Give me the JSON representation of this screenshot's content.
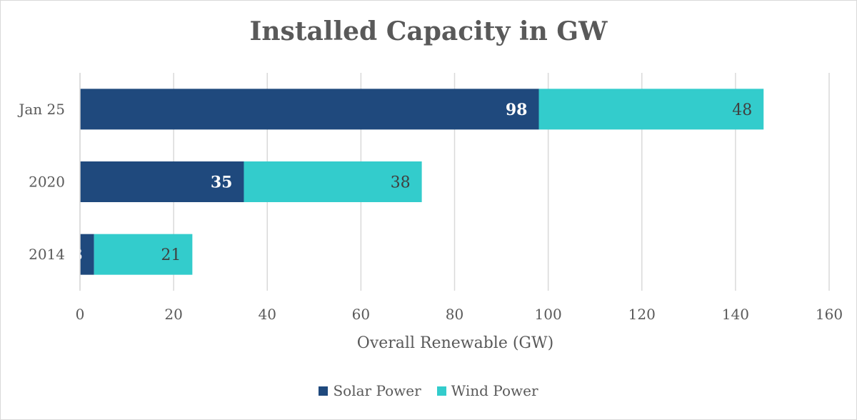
{
  "chart_data": {
    "type": "bar",
    "orientation": "horizontal",
    "stacked": true,
    "title": "Installed Capacity in GW",
    "xlabel": "Overall Renewable (GW)",
    "ylabel": "",
    "xlim": [
      0,
      160
    ],
    "xticks": [
      0,
      20,
      40,
      60,
      80,
      100,
      120,
      140,
      160
    ],
    "grid": true,
    "legend_position": "bottom",
    "categories": [
      "Jan 25",
      "2020",
      "2014"
    ],
    "series": [
      {
        "name": "Solar Power",
        "color": "#1f497d",
        "values": [
          98,
          35,
          3
        ],
        "label_color": "#ffffff",
        "label_bold": true
      },
      {
        "name": "Wind Power",
        "color": "#33cccc",
        "values": [
          48,
          38,
          21
        ],
        "label_color": "#404040",
        "label_bold": false
      }
    ]
  }
}
